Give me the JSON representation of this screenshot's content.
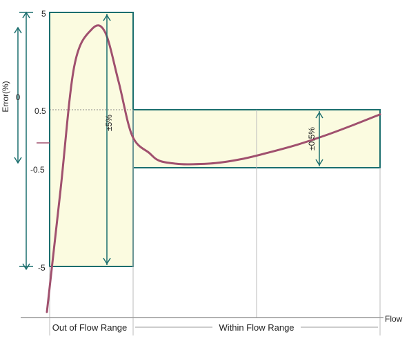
{
  "chart_data": {
    "type": "line",
    "title": "",
    "ylabel": "Error(%)",
    "xlabel": "Flow",
    "y_ticks": [
      "5",
      "0.5",
      "0",
      "-0.5",
      "-5"
    ],
    "ylim": [
      -5,
      5
    ],
    "x_regions": [
      {
        "label": "Out of Flow Range"
      },
      {
        "label": "Within Flow Range"
      }
    ],
    "tolerance_bands": [
      {
        "label": "±5%",
        "upper": 5,
        "lower": -5,
        "region": "Out of Flow Range"
      },
      {
        "label": "±0.5%",
        "upper": 0.5,
        "lower": -0.5,
        "region": "Within Flow Range"
      }
    ],
    "series": [
      {
        "x": [
          0.0,
          0.04,
          0.08,
          0.13,
          0.17,
          0.21,
          0.25,
          0.3,
          0.33,
          0.38,
          0.42,
          0.5,
          0.58,
          0.66,
          0.75,
          0.84,
          0.92,
          1.0
        ],
        "values": [
          -6.5,
          -1.5,
          2.5,
          4.2,
          4.1,
          1.8,
          0.05,
          -0.25,
          -0.38,
          -0.43,
          -0.44,
          -0.42,
          -0.35,
          -0.24,
          -0.1,
          0.07,
          0.24,
          0.42
        ]
      }
    ],
    "colors": {
      "curve": "#a0506e",
      "band_border": "#1a6e6e",
      "band_fill": "#fbfbe0",
      "arrow": "#1a6e6e",
      "grid": "#bbbbbb"
    },
    "grid": true
  }
}
